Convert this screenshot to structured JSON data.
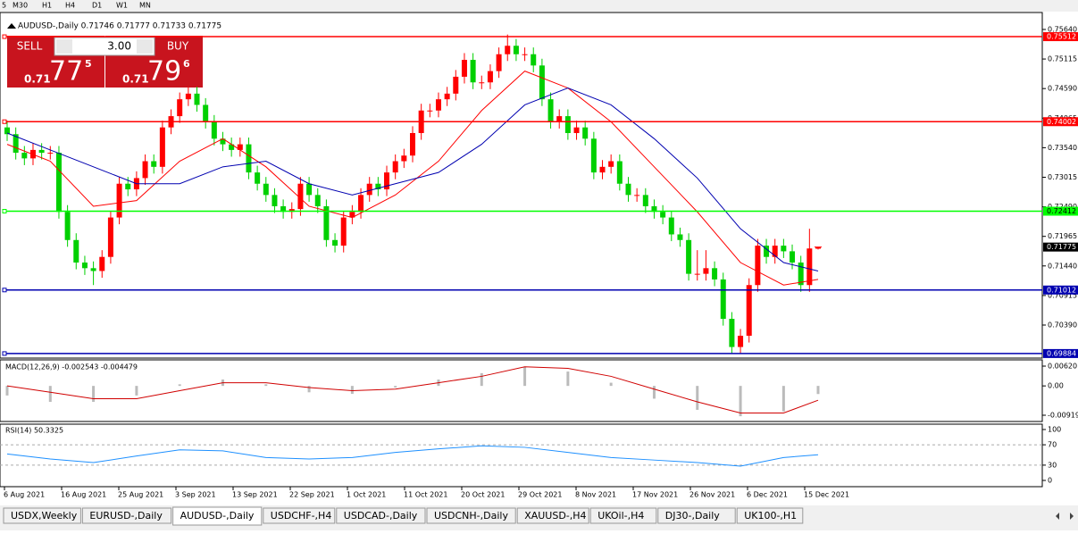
{
  "toolbar": {
    "timeframes": [
      "5",
      "M30",
      "H1",
      "H4",
      "D1",
      "W1",
      "MN"
    ]
  },
  "chart": {
    "header": "AUDUSD-,Daily 0.71746 0.71777 0.71733 0.71775",
    "trade_panel": {
      "sell": "SELL",
      "buy": "BUY",
      "lots": "3.00",
      "bid": {
        "big": "0.71",
        "mid": "77",
        "small": "5"
      },
      "ask": {
        "big": "0.71",
        "mid": "79",
        "small": "6"
      }
    },
    "ylim": [
      0.69819,
      0.75941
    ],
    "yticks": [
      {
        "value": 0.7564,
        "label": "0.75640"
      },
      {
        "value": 0.75115,
        "label": "0.75115"
      },
      {
        "value": 0.7459,
        "label": "0.74590"
      },
      {
        "value": 0.74065,
        "label": "0.74065"
      },
      {
        "value": 0.7354,
        "label": "0.73540"
      },
      {
        "value": 0.73015,
        "label": "0.73015"
      },
      {
        "value": 0.7249,
        "label": "0.72490"
      },
      {
        "value": 0.71965,
        "label": "0.71965"
      },
      {
        "value": 0.7144,
        "label": "0.71440"
      },
      {
        "value": 0.70915,
        "label": "0.70915"
      },
      {
        "value": 0.7039,
        "label": "0.70390"
      }
    ],
    "levels": [
      {
        "value": 0.75512,
        "label": "0.75512",
        "color": "#ff0000"
      },
      {
        "value": 0.74002,
        "label": "0.74002",
        "color": "#ff0000"
      },
      {
        "value": 0.72412,
        "label": "0.72412",
        "color": "#00ff00"
      },
      {
        "value": 0.71012,
        "label": "0.71012",
        "color": "#0000b0"
      },
      {
        "value": 0.69884,
        "label": "0.69884",
        "color": "#0000b0"
      }
    ],
    "current_price": {
      "value": 0.71775,
      "label": "0.71775"
    },
    "candles": [
      [
        0.739,
        0.7402,
        0.7366,
        0.7378
      ],
      [
        0.7378,
        0.739,
        0.7333,
        0.7345
      ],
      [
        0.7345,
        0.7357,
        0.7323,
        0.7335
      ],
      [
        0.7335,
        0.7362,
        0.7323,
        0.735
      ],
      [
        0.735,
        0.7362,
        0.7333,
        0.7345
      ],
      [
        0.7345,
        0.7357,
        0.7333,
        0.7345
      ],
      [
        0.7345,
        0.7357,
        0.7228,
        0.724
      ],
      [
        0.724,
        0.7252,
        0.7178,
        0.719
      ],
      [
        0.719,
        0.7202,
        0.7138,
        0.715
      ],
      [
        0.715,
        0.7162,
        0.7128,
        0.714
      ],
      [
        0.714,
        0.7152,
        0.711,
        0.7135
      ],
      [
        0.7135,
        0.7172,
        0.7123,
        0.716
      ],
      [
        0.716,
        0.7242,
        0.7148,
        0.723
      ],
      [
        0.723,
        0.7302,
        0.7218,
        0.729
      ],
      [
        0.729,
        0.7302,
        0.7268,
        0.728
      ],
      [
        0.728,
        0.7312,
        0.7268,
        0.73
      ],
      [
        0.73,
        0.7342,
        0.7288,
        0.733
      ],
      [
        0.733,
        0.7342,
        0.7308,
        0.732
      ],
      [
        0.732,
        0.7402,
        0.7308,
        0.739
      ],
      [
        0.739,
        0.7422,
        0.7378,
        0.741
      ],
      [
        0.741,
        0.7452,
        0.7398,
        0.744
      ],
      [
        0.744,
        0.7462,
        0.7428,
        0.745
      ],
      [
        0.745,
        0.7462,
        0.7418,
        0.743
      ],
      [
        0.743,
        0.7442,
        0.7388,
        0.74
      ],
      [
        0.74,
        0.7412,
        0.7358,
        0.737
      ],
      [
        0.737,
        0.7382,
        0.7348,
        0.736
      ],
      [
        0.736,
        0.7372,
        0.7338,
        0.735
      ],
      [
        0.735,
        0.7372,
        0.7338,
        0.736
      ],
      [
        0.736,
        0.7372,
        0.7298,
        0.731
      ],
      [
        0.731,
        0.7322,
        0.7278,
        0.729
      ],
      [
        0.729,
        0.7302,
        0.7258,
        0.727
      ],
      [
        0.727,
        0.7282,
        0.7238,
        0.725
      ],
      [
        0.725,
        0.7262,
        0.7228,
        0.724
      ],
      [
        0.724,
        0.7257,
        0.7228,
        0.7245
      ],
      [
        0.7245,
        0.7302,
        0.7233,
        0.729
      ],
      [
        0.729,
        0.7302,
        0.7258,
        0.727
      ],
      [
        0.727,
        0.7282,
        0.7238,
        0.725
      ],
      [
        0.725,
        0.7262,
        0.7178,
        0.719
      ],
      [
        0.719,
        0.7202,
        0.7168,
        0.718
      ],
      [
        0.718,
        0.7242,
        0.7168,
        0.723
      ],
      [
        0.723,
        0.7252,
        0.7218,
        0.724
      ],
      [
        0.724,
        0.7282,
        0.7228,
        0.727
      ],
      [
        0.727,
        0.7302,
        0.7258,
        0.729
      ],
      [
        0.729,
        0.7302,
        0.7268,
        0.728
      ],
      [
        0.728,
        0.7322,
        0.7268,
        0.731
      ],
      [
        0.731,
        0.7342,
        0.7298,
        0.733
      ],
      [
        0.733,
        0.7352,
        0.7318,
        0.734
      ],
      [
        0.734,
        0.7392,
        0.7328,
        0.738
      ],
      [
        0.738,
        0.7432,
        0.7368,
        0.742
      ],
      [
        0.742,
        0.7432,
        0.7408,
        0.742
      ],
      [
        0.742,
        0.7452,
        0.7408,
        0.744
      ],
      [
        0.744,
        0.7462,
        0.7428,
        0.745
      ],
      [
        0.745,
        0.7492,
        0.7438,
        0.748
      ],
      [
        0.748,
        0.7522,
        0.7468,
        0.751
      ],
      [
        0.751,
        0.7522,
        0.7458,
        0.747
      ],
      [
        0.747,
        0.7482,
        0.7458,
        0.747
      ],
      [
        0.747,
        0.7502,
        0.7458,
        0.749
      ],
      [
        0.749,
        0.7532,
        0.7478,
        0.752
      ],
      [
        0.752,
        0.7555,
        0.7508,
        0.7535
      ],
      [
        0.7535,
        0.7547,
        0.7508,
        0.752
      ],
      [
        0.752,
        0.7532,
        0.7508,
        0.752
      ],
      [
        0.752,
        0.7532,
        0.7488,
        0.75
      ],
      [
        0.75,
        0.7512,
        0.7428,
        0.744
      ],
      [
        0.744,
        0.7452,
        0.7388,
        0.74
      ],
      [
        0.74,
        0.7422,
        0.7388,
        0.741
      ],
      [
        0.741,
        0.7422,
        0.7368,
        0.738
      ],
      [
        0.738,
        0.7402,
        0.7368,
        0.739
      ],
      [
        0.739,
        0.7402,
        0.7358,
        0.737
      ],
      [
        0.737,
        0.7382,
        0.7298,
        0.731
      ],
      [
        0.731,
        0.7332,
        0.7298,
        0.732
      ],
      [
        0.732,
        0.7342,
        0.7308,
        0.733
      ],
      [
        0.733,
        0.7342,
        0.7278,
        0.729
      ],
      [
        0.729,
        0.7302,
        0.7258,
        0.727
      ],
      [
        0.727,
        0.7282,
        0.7258,
        0.727
      ],
      [
        0.727,
        0.7282,
        0.7238,
        0.725
      ],
      [
        0.725,
        0.7262,
        0.7228,
        0.724
      ],
      [
        0.724,
        0.7252,
        0.7218,
        0.723
      ],
      [
        0.723,
        0.7242,
        0.7188,
        0.72
      ],
      [
        0.72,
        0.7212,
        0.7178,
        0.719
      ],
      [
        0.719,
        0.7202,
        0.7118,
        0.713
      ],
      [
        0.713,
        0.7172,
        0.7118,
        0.713
      ],
      [
        0.713,
        0.7172,
        0.7118,
        0.714
      ],
      [
        0.714,
        0.7152,
        0.7108,
        0.712
      ],
      [
        0.712,
        0.7132,
        0.7038,
        0.705
      ],
      [
        0.705,
        0.7062,
        0.6988,
        0.7
      ],
      [
        0.7,
        0.7032,
        0.6988,
        0.702
      ],
      [
        0.702,
        0.7122,
        0.7008,
        0.711
      ],
      [
        0.711,
        0.7192,
        0.7098,
        0.718
      ],
      [
        0.718,
        0.7192,
        0.7148,
        0.716
      ],
      [
        0.716,
        0.7192,
        0.7148,
        0.718
      ],
      [
        0.718,
        0.7192,
        0.7158,
        0.717
      ],
      [
        0.717,
        0.7182,
        0.7138,
        0.715
      ],
      [
        0.715,
        0.7162,
        0.7098,
        0.711
      ],
      [
        0.711,
        0.721,
        0.7098,
        0.7175
      ],
      [
        0.71746,
        0.71777,
        0.71733,
        0.71775
      ]
    ],
    "ma_fast": {
      "color": "#ff0000",
      "x": [
        0,
        5,
        10,
        15,
        20,
        25,
        30,
        35,
        40,
        45,
        50,
        55,
        60,
        65,
        70,
        75,
        80,
        85,
        90,
        94
      ],
      "values": [
        0.736,
        0.733,
        0.725,
        0.726,
        0.733,
        0.737,
        0.732,
        0.725,
        0.723,
        0.727,
        0.733,
        0.742,
        0.749,
        0.746,
        0.74,
        0.732,
        0.724,
        0.715,
        0.711,
        0.712
      ]
    },
    "ma_slow": {
      "color": "#0000b0",
      "x": [
        0,
        5,
        10,
        15,
        20,
        25,
        30,
        35,
        40,
        45,
        50,
        55,
        60,
        65,
        70,
        75,
        80,
        85,
        90,
        94
      ],
      "values": [
        0.738,
        0.735,
        0.732,
        0.729,
        0.729,
        0.732,
        0.733,
        0.729,
        0.727,
        0.729,
        0.731,
        0.736,
        0.743,
        0.746,
        0.743,
        0.737,
        0.73,
        0.721,
        0.715,
        0.7135
      ]
    },
    "dates": [
      "6 Aug 2021",
      "16 Aug 2021",
      "25 Aug 2021",
      "3 Sep 2021",
      "13 Sep 2021",
      "22 Sep 2021",
      "1 Oct 2021",
      "11 Oct 2021",
      "20 Oct 2021",
      "29 Oct 2021",
      "8 Nov 2021",
      "17 Nov 2021",
      "26 Nov 2021",
      "6 Dec 2021",
      "15 Dec 2021"
    ]
  },
  "macd": {
    "label": "MACD(12,26,9) -0.002543 -0.004479",
    "ylim": [
      -0.01115,
      0.00816
    ],
    "yticks": [
      {
        "value": 0.006201,
        "label": "0.006201"
      },
      {
        "value": 0,
        "label": "0.00"
      },
      {
        "value": -0.00919,
        "label": "-0.00919"
      }
    ],
    "x": [
      0,
      5,
      10,
      15,
      20,
      25,
      30,
      35,
      40,
      45,
      50,
      55,
      60,
      65,
      70,
      75,
      80,
      85,
      90,
      94
    ],
    "histogram": [
      -0.003,
      -0.005,
      -0.005,
      -0.003,
      0.0005,
      0.002,
      0.0005,
      -0.002,
      -0.0025,
      -0.0005,
      0.002,
      0.004,
      0.006,
      0.0045,
      0.001,
      -0.004,
      -0.0075,
      -0.0095,
      -0.008,
      -0.002543
    ],
    "signal": [
      0.0,
      -0.002,
      -0.004,
      -0.004,
      -0.0015,
      0.001,
      0.001,
      -0.0005,
      -0.0015,
      -0.001,
      0.001,
      0.003,
      0.006,
      0.0055,
      0.003,
      -0.001,
      -0.005,
      -0.0085,
      -0.0085,
      -0.004479
    ]
  },
  "rsi": {
    "label": "RSI(14) 50.3325",
    "ylim": [
      -12.3,
      110.5
    ],
    "yticks": [
      100,
      70,
      30,
      0
    ],
    "levels": [
      70,
      30
    ],
    "x": [
      0,
      5,
      10,
      15,
      20,
      25,
      30,
      35,
      40,
      45,
      50,
      55,
      60,
      65,
      70,
      75,
      80,
      85,
      90,
      94
    ],
    "values": [
      52,
      42,
      35,
      48,
      60,
      58,
      45,
      42,
      45,
      55,
      62,
      68,
      65,
      55,
      45,
      40,
      35,
      28,
      45,
      50.3325
    ]
  },
  "tabs": {
    "items": [
      "USDX,Weekly",
      "EURUSD-,Daily",
      "AUDUSD-,Daily",
      "USDCHF-,H4",
      "USDCAD-,Daily",
      "USDCNH-,Daily",
      "XAUUSD-,H4",
      "UKOil-,H4",
      "DJ30-,Daily",
      "UK100-,H1"
    ],
    "active": 2
  }
}
